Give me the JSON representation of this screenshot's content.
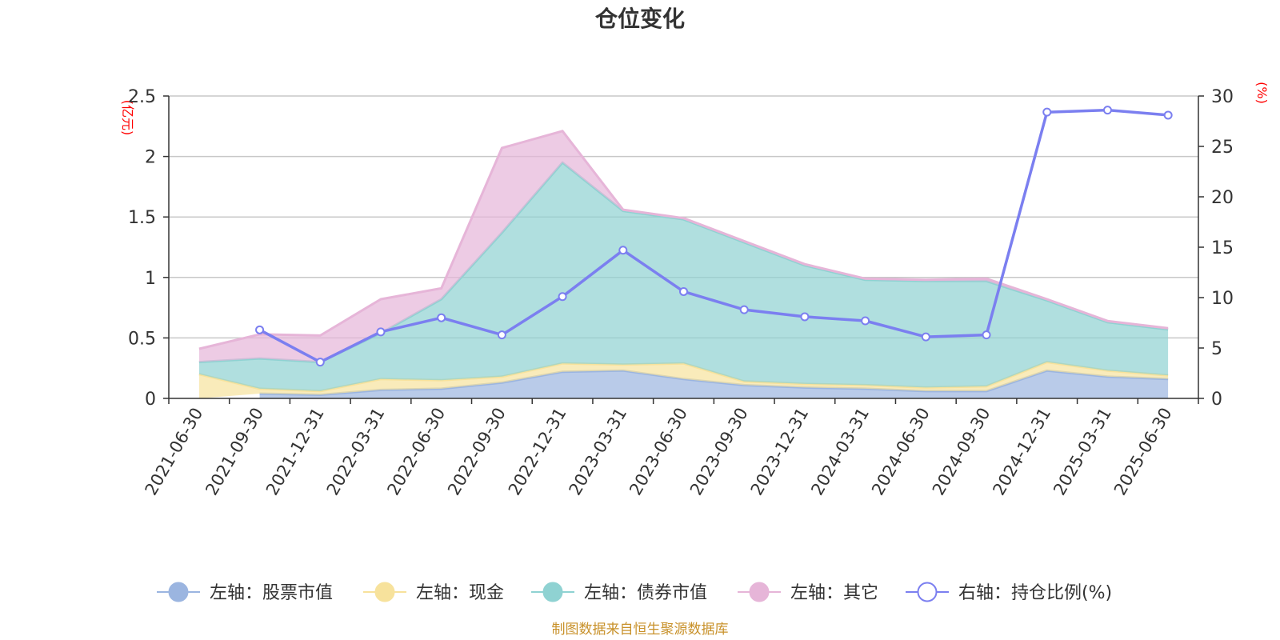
{
  "chart_data": {
    "type": "area",
    "title": "仓位变化",
    "left_unit": "(亿元)",
    "right_unit": "(%)",
    "categories": [
      "2021-06-30",
      "2021-09-30",
      "2021-12-31",
      "2022-03-31",
      "2022-06-30",
      "2022-09-30",
      "2022-12-31",
      "2023-03-31",
      "2023-06-30",
      "2023-09-30",
      "2023-12-31",
      "2024-03-31",
      "2024-06-30",
      "2024-09-30",
      "2024-12-31",
      "2025-03-31",
      "2025-06-30"
    ],
    "left_axis": {
      "min": 0,
      "max": 2.5,
      "ticks": [
        "0",
        "0.5",
        "1",
        "1.5",
        "2",
        "2.5"
      ]
    },
    "right_axis": {
      "min": 0,
      "max": 30,
      "ticks": [
        "0",
        "5",
        "10",
        "15",
        "20",
        "25",
        "30"
      ]
    },
    "grid": true,
    "legend_position": "bottom",
    "stacked_series": [
      {
        "name": "左轴：股票市值",
        "color": "#9bb5e0",
        "values": [
          null,
          0.04,
          0.03,
          0.07,
          0.08,
          0.13,
          0.22,
          0.23,
          0.16,
          0.11,
          0.09,
          0.08,
          0.06,
          0.06,
          0.23,
          0.18,
          0.16
        ]
      },
      {
        "name": "左轴：现金",
        "color": "#f7e29c",
        "values": [
          0.2,
          0.04,
          0.03,
          0.09,
          0.07,
          0.05,
          0.07,
          0.05,
          0.13,
          0.03,
          0.03,
          0.03,
          0.03,
          0.04,
          0.07,
          0.05,
          0.03
        ]
      },
      {
        "name": "左轴：债券市值",
        "color": "#8fd2d2",
        "values": [
          0.1,
          0.25,
          0.24,
          0.38,
          0.67,
          1.19,
          1.66,
          1.27,
          1.19,
          1.15,
          0.98,
          0.87,
          0.88,
          0.87,
          0.51,
          0.4,
          0.38
        ]
      },
      {
        "name": "左轴：其它",
        "color": "#e6b5d8",
        "values": [
          0.11,
          0.2,
          0.22,
          0.28,
          0.09,
          0.7,
          0.26,
          0.01,
          0.01,
          0.01,
          0.01,
          0.01,
          0.01,
          0.02,
          0.01,
          0.01,
          0.01
        ]
      }
    ],
    "line_series": {
      "name": "右轴：持仓比例(%)",
      "color": "#7b7ff0",
      "values": [
        null,
        6.8,
        3.6,
        6.6,
        8.0,
        6.3,
        10.1,
        14.7,
        10.6,
        8.8,
        8.1,
        7.7,
        6.1,
        6.3,
        28.4,
        28.6,
        28.1
      ]
    }
  },
  "footer": {
    "source": "制图数据来自恒生聚源数据库"
  }
}
